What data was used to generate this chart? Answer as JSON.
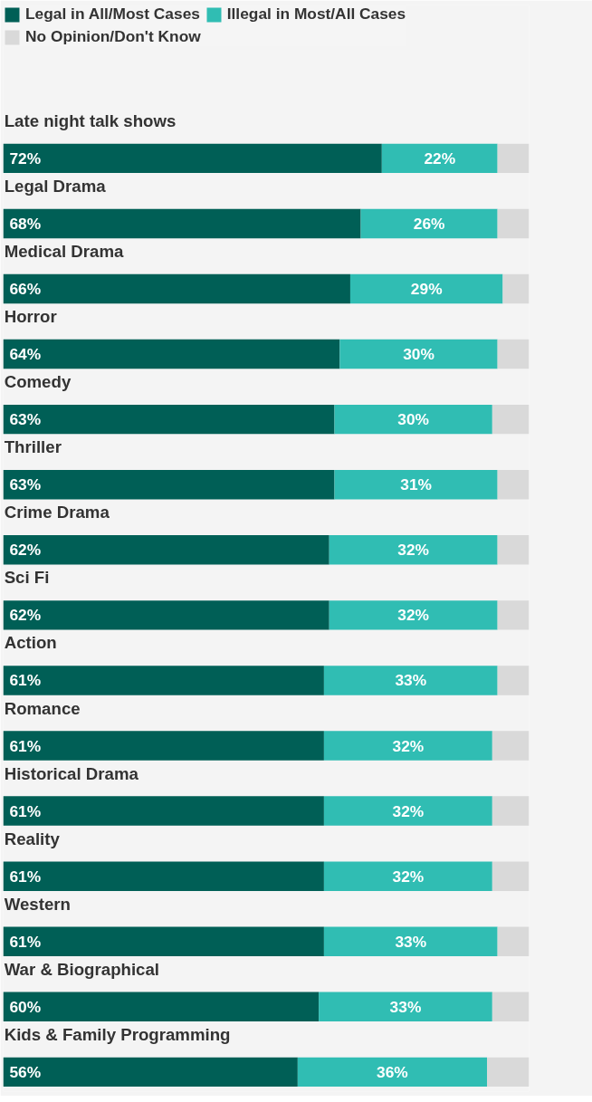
{
  "chart_data": {
    "type": "bar",
    "orientation": "horizontal",
    "stacked": true,
    "legend": "top left",
    "categories": [
      "Late night talk shows",
      "Legal Drama",
      "Medical Drama",
      "Horror",
      "Comedy",
      "Thriller",
      "Crime Drama",
      "Sci Fi",
      "Action",
      "Romance",
      "Historical Drama",
      "Reality",
      "Western",
      "War & Biographical",
      "Kids & Family Programming"
    ],
    "series": [
      {
        "name": "Legal in All/Most Cases",
        "color": "#005f56",
        "values": [
          72,
          68,
          66,
          64,
          63,
          63,
          62,
          62,
          61,
          61,
          61,
          61,
          61,
          60,
          56
        ],
        "value_labels": [
          "72%",
          "68%",
          "66%",
          "64%",
          "63%",
          "63%",
          "62%",
          "62%",
          "61%",
          "61%",
          "61%",
          "61%",
          "61%",
          "60%",
          "56%"
        ]
      },
      {
        "name": "Illegal in Most/All Cases",
        "color": "#30bdb3",
        "values": [
          22,
          26,
          29,
          30,
          30,
          31,
          32,
          32,
          33,
          32,
          32,
          32,
          33,
          33,
          36
        ],
        "value_labels": [
          "22%",
          "26%",
          "29%",
          "30%",
          "30%",
          "31%",
          "32%",
          "32%",
          "33%",
          "32%",
          "32%",
          "32%",
          "33%",
          "33%",
          "36%"
        ]
      },
      {
        "name": "No Opinion/Don't Know",
        "color": "#d9d9d9",
        "values": [
          6,
          6,
          5,
          6,
          7,
          6,
          6,
          6,
          6,
          7,
          7,
          7,
          6,
          7,
          8
        ]
      }
    ]
  }
}
